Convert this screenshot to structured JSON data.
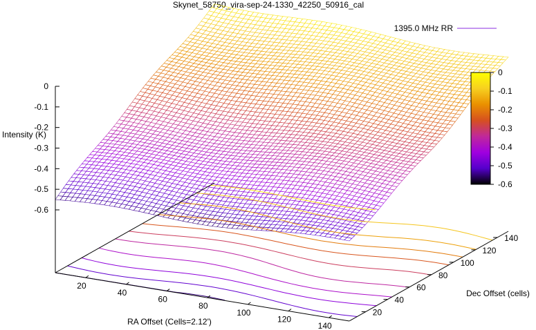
{
  "chart_data": {
    "type": "surface3d",
    "title": "Skynet_58750_vira-sep-24-1330_42250_50916_cal",
    "xlabel": "RA Offset (Cells=2.12')",
    "ylabel": "Dec Offset (cells)",
    "zlabel": "Intensity (K)",
    "legend": {
      "label": "1395.0 MHz RR",
      "color": "#8a2be2",
      "position": "top-right"
    },
    "x_ticks": [
      "20",
      "40",
      "60",
      "80",
      "100",
      "120",
      "140"
    ],
    "y_ticks": [
      "20",
      "40",
      "60",
      "80",
      "100",
      "120",
      "140"
    ],
    "z_ticks": [
      "0",
      "-0.1",
      "-0.2",
      "-0.3",
      "-0.4",
      "-0.5",
      "-0.6"
    ],
    "colorbar": {
      "ticks": [
        "0",
        "-0.1",
        "-0.2",
        "-0.3",
        "-0.4",
        "-0.5",
        "-0.6"
      ],
      "range": [
        -0.6,
        0
      ],
      "colors": [
        "#000000",
        "#5500cc",
        "#a000e0",
        "#c0289a",
        "#d65020",
        "#ea9000",
        "#f7d020",
        "#ffff00"
      ]
    },
    "xlim": [
      5,
      150
    ],
    "ylim": [
      5,
      150
    ],
    "zlim": [
      -0.6,
      0
    ],
    "surface_model": {
      "description": "intensity rises from about -0.55 K at low Dec offset to about -0.02 K at high Dec offset",
      "z_at_corners": {
        "x_low_y_low": -0.55,
        "x_high_y_low": -0.52,
        "x_low_y_high": -0.03,
        "x_high_y_high": -0.06
      }
    },
    "contours": [
      -0.55,
      -0.5,
      -0.45,
      -0.4,
      -0.35,
      -0.3,
      -0.25,
      -0.2,
      -0.15,
      -0.1,
      -0.05
    ],
    "grid": false
  }
}
